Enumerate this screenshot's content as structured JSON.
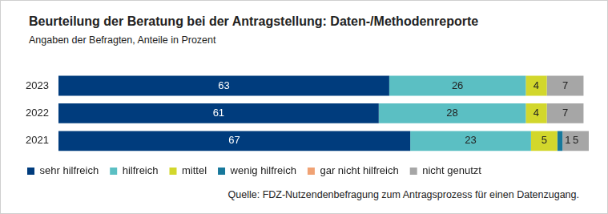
{
  "chart_data": {
    "type": "bar",
    "title": "Beurteilung der Beratung bei der Antragstellung: Daten-/Methodenreporte",
    "subtitle": "Angaben der Befragten, Anteile in Prozent",
    "source": "Quelle: FDZ-Nutzendenbefragung zum Antragsprozess für einen Datenzugang.",
    "categories": [
      "2023",
      "2022",
      "2021"
    ],
    "series": [
      {
        "name": "sehr hilfreich",
        "color": "#003c7d",
        "values": [
          63,
          61,
          67
        ]
      },
      {
        "name": "hilfreich",
        "color": "#5bbfc3",
        "values": [
          26,
          28,
          23
        ]
      },
      {
        "name": "mittel",
        "color": "#d2d72c",
        "values": [
          4,
          4,
          5
        ]
      },
      {
        "name": "wenig hilfreich",
        "color": "#17789b",
        "values": [
          0,
          0,
          1
        ]
      },
      {
        "name": "gar nicht hilfreich",
        "color": "#f0a274",
        "values": [
          0,
          0,
          0
        ]
      },
      {
        "name": "nicht genutzt",
        "color": "#a6a6a6",
        "values": [
          7,
          7,
          5
        ]
      }
    ],
    "orientation": "horizontal",
    "stacked": true,
    "data_labels": true,
    "legend": "bottom",
    "tick_labels": "y",
    "grid": false,
    "xlim": [
      0,
      101
    ]
  }
}
